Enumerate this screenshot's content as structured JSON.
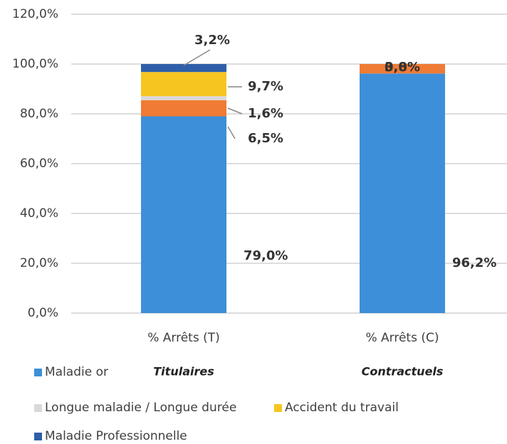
{
  "chart_data": {
    "type": "stacked_bar",
    "categories": [
      "% Arrêts (T)",
      "% Arrêts (C)"
    ],
    "group_labels": [
      "Titulaires",
      "Contractuels"
    ],
    "ylim": [
      0,
      120
    ],
    "yticks": [
      {
        "value": 0,
        "label": "0,0%"
      },
      {
        "value": 20,
        "label": "20,0%"
      },
      {
        "value": 40,
        "label": "40,0%"
      },
      {
        "value": 60,
        "label": "60,0%"
      },
      {
        "value": 80,
        "label": "80,0%"
      },
      {
        "value": 100,
        "label": "100,0%"
      },
      {
        "value": 120,
        "label": "120,0%"
      }
    ],
    "grid": true,
    "series": [
      {
        "name": "Maladie or",
        "color": "#3d8fd9",
        "values": [
          79.0,
          96.2
        ],
        "value_labels": [
          "79,0%",
          "96,2%"
        ]
      },
      {
        "name": null,
        "color": "#f07b35",
        "values": [
          6.5,
          3.8
        ],
        "value_labels": [
          "6,5%",
          "3,8%"
        ]
      },
      {
        "name": "Longue maladie / Longue durée",
        "color": "#d9d9d9",
        "values": [
          1.6,
          0.0
        ],
        "value_labels": [
          "1,6%",
          "0,0%"
        ]
      },
      {
        "name": "Accident du travail",
        "color": "#f7c520",
        "values": [
          9.7,
          0.0
        ],
        "value_labels": [
          "9,7%",
          null
        ]
      },
      {
        "name": "Maladie Professionnelle",
        "color": "#2e5fa8",
        "values": [
          3.2,
          0.0
        ],
        "value_labels": [
          "3,2%",
          null
        ]
      }
    ]
  }
}
